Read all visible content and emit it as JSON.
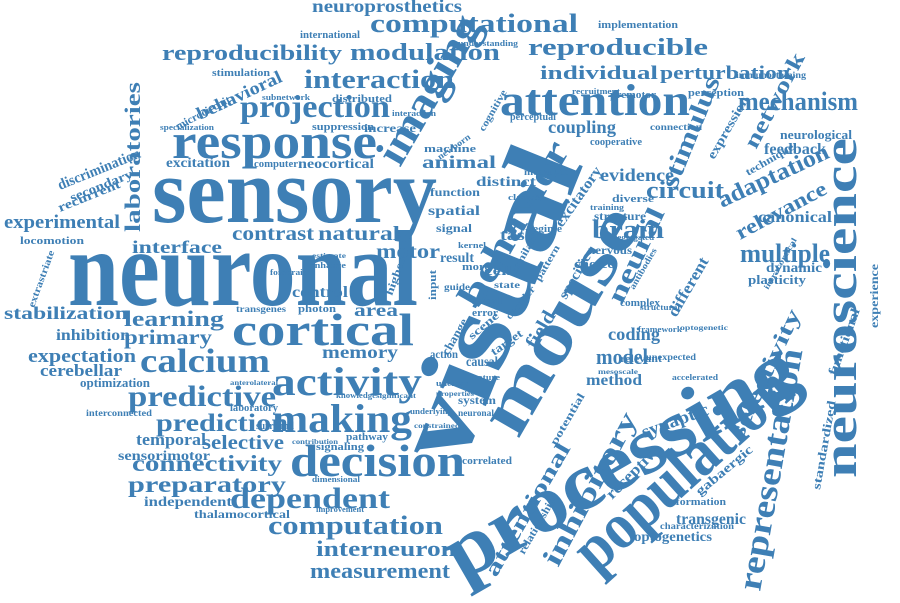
{
  "word_color": "#3e7fb5",
  "background": "#ffffff",
  "words": [
    {
      "text": "neuronal"
    },
    {
      "text": "visual"
    },
    {
      "text": "sensory"
    },
    {
      "text": "processing"
    },
    {
      "text": "mouse"
    },
    {
      "text": "population"
    },
    {
      "text": "neuroscience"
    },
    {
      "text": "response"
    },
    {
      "text": "attention"
    },
    {
      "text": "imaging"
    },
    {
      "text": "cortical"
    },
    {
      "text": "decision"
    },
    {
      "text": "activity"
    },
    {
      "text": "making"
    },
    {
      "text": "representation"
    },
    {
      "text": "calcium"
    },
    {
      "text": "projection"
    },
    {
      "text": "behavior"
    },
    {
      "text": "computational"
    },
    {
      "text": "reproducibility"
    },
    {
      "text": "reproducible"
    },
    {
      "text": "modulation"
    },
    {
      "text": "interaction"
    },
    {
      "text": "individual"
    },
    {
      "text": "perturbation"
    },
    {
      "text": "mechanism"
    },
    {
      "text": "laboratories"
    },
    {
      "text": "predictive"
    },
    {
      "text": "prediction"
    },
    {
      "text": "dependent"
    },
    {
      "text": "computation"
    },
    {
      "text": "interneuron"
    },
    {
      "text": "measurement"
    },
    {
      "text": "preparatory"
    },
    {
      "text": "connectivity"
    },
    {
      "text": "selective"
    },
    {
      "text": "learning"
    },
    {
      "text": "primary"
    },
    {
      "text": "expectation"
    },
    {
      "text": "inhibitory"
    },
    {
      "text": "attentional"
    },
    {
      "text": "circuit"
    },
    {
      "text": "brain"
    },
    {
      "text": "neural"
    },
    {
      "text": "stimulus"
    },
    {
      "text": "adaptation"
    },
    {
      "text": "multiple"
    },
    {
      "text": "network"
    },
    {
      "text": "relevance"
    },
    {
      "text": "selectivity"
    },
    {
      "text": "experimental"
    },
    {
      "text": "stabilization"
    },
    {
      "text": "memory"
    },
    {
      "text": "interface"
    },
    {
      "text": "contrast"
    },
    {
      "text": "natural"
    },
    {
      "text": "motor"
    },
    {
      "text": "control"
    },
    {
      "text": "area"
    },
    {
      "text": "inhibition"
    },
    {
      "text": "cerebellar"
    },
    {
      "text": "temporal"
    },
    {
      "text": "sensorimotor"
    },
    {
      "text": "independent"
    },
    {
      "text": "thalamocortical"
    },
    {
      "text": "behavioral"
    },
    {
      "text": "neocortical"
    },
    {
      "text": "excitation"
    },
    {
      "text": "animal"
    },
    {
      "text": "coupling"
    },
    {
      "text": "evidence"
    },
    {
      "text": "model"
    },
    {
      "text": "coding"
    },
    {
      "text": "method"
    },
    {
      "text": "synaptic"
    },
    {
      "text": "receptive"
    },
    {
      "text": "transgenic"
    },
    {
      "text": "optogenetics"
    },
    {
      "text": "characterization"
    },
    {
      "text": "information"
    },
    {
      "text": "gabaergic"
    },
    {
      "text": "standardized"
    },
    {
      "text": "functional"
    },
    {
      "text": "experience"
    },
    {
      "text": "canonical"
    },
    {
      "text": "dynamic"
    },
    {
      "text": "plasticity"
    },
    {
      "text": "feedback"
    },
    {
      "text": "neurological"
    },
    {
      "text": "technique"
    },
    {
      "text": "expression"
    },
    {
      "text": "immunostaining"
    },
    {
      "text": "perception"
    },
    {
      "text": "implementation"
    },
    {
      "text": "neuroprosthetics"
    },
    {
      "text": "international"
    },
    {
      "text": "stimulation"
    },
    {
      "text": "microcircuit"
    },
    {
      "text": "subnetwork"
    },
    {
      "text": "distributed"
    },
    {
      "text": "specialization"
    },
    {
      "text": "suppression"
    },
    {
      "text": "increase"
    },
    {
      "text": "discrimination"
    },
    {
      "text": "secondary"
    },
    {
      "text": "recurrent"
    },
    {
      "text": "locomotion"
    },
    {
      "text": "extrastriate"
    },
    {
      "text": "optimization"
    },
    {
      "text": "interconnected"
    },
    {
      "text": "laboratory"
    },
    {
      "text": "surround"
    },
    {
      "text": "signaling"
    },
    {
      "text": "pathway"
    },
    {
      "text": "dimensional"
    },
    {
      "text": "improvement"
    },
    {
      "text": "correlated"
    },
    {
      "text": "system"
    },
    {
      "text": "neuronal"
    },
    {
      "text": "action"
    },
    {
      "text": "causal"
    },
    {
      "text": "target"
    },
    {
      "text": "field"
    },
    {
      "text": "distinct"
    },
    {
      "text": "machine"
    },
    {
      "text": "function"
    },
    {
      "text": "spatial"
    },
    {
      "text": "signal"
    },
    {
      "text": "result"
    },
    {
      "text": "task"
    },
    {
      "text": "cell"
    },
    {
      "text": "excitatory"
    },
    {
      "text": "structure"
    },
    {
      "text": "nervous"
    },
    {
      "text": "choice"
    },
    {
      "text": "specific"
    },
    {
      "text": "different"
    },
    {
      "text": "complex"
    },
    {
      "text": "relevant"
    },
    {
      "text": "unexpected"
    },
    {
      "text": "accelerated"
    },
    {
      "text": "modulate"
    },
    {
      "text": "cooperative"
    },
    {
      "text": "connection"
    },
    {
      "text": "premotor"
    },
    {
      "text": "cognitive"
    },
    {
      "text": "perceptual"
    },
    {
      "text": "newborn"
    },
    {
      "text": "computer"
    },
    {
      "text": "transgenes"
    },
    {
      "text": "photon"
    },
    {
      "text": "potential"
    },
    {
      "text": "relationship"
    },
    {
      "text": "understanding"
    },
    {
      "text": "interaction"
    },
    {
      "text": "segregated"
    },
    {
      "text": "regime"
    },
    {
      "text": "error"
    },
    {
      "text": "state"
    },
    {
      "text": "more"
    },
    {
      "text": "local"
    },
    {
      "text": "scene"
    },
    {
      "text": "change"
    },
    {
      "text": "input"
    },
    {
      "text": "diverse"
    },
    {
      "text": "similar"
    },
    {
      "text": "pattern"
    },
    {
      "text": "kernel"
    },
    {
      "text": "guide"
    },
    {
      "text": "higher"
    },
    {
      "text": "classes"
    },
    {
      "text": "training"
    },
    {
      "text": "decoder"
    },
    {
      "text": "recruitment"
    },
    {
      "text": "forebrain"
    },
    {
      "text": "enhance"
    },
    {
      "text": "estimate"
    },
    {
      "text": "significant"
    },
    {
      "text": "knowledge"
    },
    {
      "text": "contribution"
    },
    {
      "text": "underlying"
    },
    {
      "text": "constrained"
    },
    {
      "text": "properties"
    },
    {
      "text": "unclear"
    },
    {
      "text": "antibodies"
    },
    {
      "text": "optogenetic"
    },
    {
      "text": "intracortical"
    },
    {
      "text": "framework"
    },
    {
      "text": "structural"
    },
    {
      "text": "anterolateral"
    },
    {
      "text": "feature"
    },
    {
      "text": "mesoscale"
    }
  ]
}
